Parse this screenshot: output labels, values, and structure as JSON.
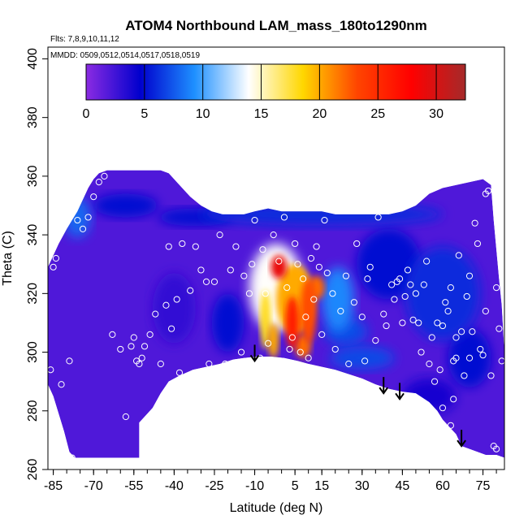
{
  "chart_data": {
    "type": "heatmap",
    "title": "ATOM4 Northbound LAM_mass_180to1290nm",
    "flights_label": "Flts: 7,8,9,10,11,12",
    "dates_label": "MMDD: 0509,0512,0514,0517,0518,0519",
    "xlabel": "Latitude (deg N)",
    "ylabel": "Theta (C)",
    "xlim": [
      -87,
      83
    ],
    "ylim": [
      260,
      404
    ],
    "x_ticks": [
      -85,
      -70,
      -55,
      -40,
      -25,
      -10,
      5,
      15,
      30,
      45,
      60,
      75
    ],
    "x_tick_labels": [
      "-85",
      "-70",
      "-55",
      "-40",
      "-25",
      "-10",
      "5",
      "15",
      "30",
      "45",
      "60",
      "75"
    ],
    "y_ticks": [
      260,
      280,
      300,
      320,
      340,
      360,
      380,
      400
    ],
    "y_tick_labels": [
      "260",
      "280",
      "300",
      "320",
      "340",
      "360",
      "380",
      "400"
    ],
    "colorbar": {
      "ticks": [
        0,
        5,
        10,
        15,
        20,
        25,
        30
      ],
      "tick_labels": [
        "0",
        "5",
        "10",
        "15",
        "20",
        "25",
        "30"
      ],
      "range": [
        0,
        32.5
      ],
      "colors": [
        "#8b2be2",
        "#0000cd",
        "#1e90ff",
        "#ffffff",
        "#ffd700",
        "#ff4500",
        "#ff0000",
        "#a52a2a"
      ]
    },
    "arrows": [
      {
        "lat": -10,
        "theta": 297
      },
      {
        "lat": 38,
        "theta": 286
      },
      {
        "lat": 44,
        "theta": 284
      },
      {
        "lat": 67,
        "theta": 268
      }
    ],
    "surface": [
      [
        -87,
        289
      ],
      [
        -85,
        285
      ],
      [
        -83,
        279
      ],
      [
        -81,
        273
      ],
      [
        -79,
        266
      ],
      [
        -77,
        264
      ],
      [
        -74,
        264
      ],
      [
        -70,
        264
      ],
      [
        -65,
        264
      ],
      [
        -60,
        264
      ],
      [
        -55,
        264
      ],
      [
        -53,
        264
      ],
      [
        -53,
        276
      ],
      [
        -51,
        278
      ],
      [
        -48,
        281
      ],
      [
        -45,
        286
      ],
      [
        -42,
        290
      ],
      [
        -38,
        292
      ],
      [
        -33,
        294
      ],
      [
        -28,
        295
      ],
      [
        -23,
        296
      ],
      [
        -18,
        297.5
      ],
      [
        -14,
        298
      ],
      [
        -9,
        298.5
      ],
      [
        -4,
        298.5
      ],
      [
        1,
        298
      ],
      [
        6,
        297
      ],
      [
        10,
        296
      ],
      [
        15,
        295
      ],
      [
        20,
        294
      ],
      [
        25,
        292.5
      ],
      [
        30,
        291
      ],
      [
        35,
        289
      ],
      [
        40,
        287.5
      ],
      [
        45,
        286.5
      ],
      [
        50,
        286
      ],
      [
        55,
        283
      ],
      [
        58,
        280
      ],
      [
        60,
        277
      ],
      [
        63,
        274
      ],
      [
        65,
        272
      ],
      [
        67,
        268
      ],
      [
        70,
        267
      ],
      [
        73,
        266
      ],
      [
        76,
        265
      ],
      [
        80,
        265
      ],
      [
        83,
        264
      ]
    ],
    "top_boundary": [
      [
        -87,
        329
      ],
      [
        -85,
        333
      ],
      [
        -83,
        337
      ],
      [
        -80,
        342
      ],
      [
        -78,
        345
      ],
      [
        -76,
        348
      ],
      [
        -74,
        352
      ],
      [
        -72,
        356
      ],
      [
        -70,
        359
      ],
      [
        -68,
        361
      ],
      [
        -65,
        362
      ],
      [
        -60,
        362
      ],
      [
        -55,
        362
      ],
      [
        -50,
        362
      ],
      [
        -45,
        362
      ],
      [
        -42,
        361
      ],
      [
        -38,
        357
      ],
      [
        -34,
        353
      ],
      [
        -30,
        350
      ],
      [
        -26,
        348
      ],
      [
        -22,
        347
      ],
      [
        -18,
        347
      ],
      [
        -14,
        347
      ],
      [
        -10,
        348
      ],
      [
        -5,
        349
      ],
      [
        0,
        348
      ],
      [
        5,
        348
      ],
      [
        10,
        348
      ],
      [
        15,
        348
      ],
      [
        20,
        347
      ],
      [
        25,
        347
      ],
      [
        30,
        347
      ],
      [
        35,
        347
      ],
      [
        40,
        347
      ],
      [
        45,
        348
      ],
      [
        50,
        350
      ],
      [
        55,
        354
      ],
      [
        60,
        356
      ],
      [
        65,
        357
      ],
      [
        70,
        358
      ],
      [
        75,
        359
      ],
      [
        78,
        357
      ],
      [
        79,
        345
      ],
      [
        80,
        335
      ],
      [
        81,
        325
      ],
      [
        82,
        316
      ],
      [
        83,
        300
      ]
    ],
    "blobs": [
      {
        "lat": -2,
        "theta": 322,
        "rx": 10,
        "ry": 15,
        "value": 14
      },
      {
        "lat": 5,
        "theta": 318,
        "rx": 7,
        "ry": 12,
        "value": 20
      },
      {
        "lat": -1,
        "theta": 329,
        "rx": 3,
        "ry": 4,
        "value": 29
      },
      {
        "lat": 4,
        "theta": 310,
        "rx": 2.5,
        "ry": 9,
        "value": 26
      },
      {
        "lat": 10,
        "theta": 314,
        "rx": 3,
        "ry": 11,
        "value": 23
      },
      {
        "lat": 13,
        "theta": 322,
        "rx": 3,
        "ry": 4,
        "value": 22
      },
      {
        "lat": -6,
        "theta": 311,
        "rx": 2,
        "ry": 10,
        "value": 18
      },
      {
        "lat": -3,
        "theta": 304,
        "rx": 2,
        "ry": 6,
        "value": 20
      },
      {
        "lat": 8,
        "theta": 302,
        "rx": 3,
        "ry": 4,
        "value": 22
      },
      {
        "lat": 21,
        "theta": 318,
        "rx": 6,
        "ry": 11,
        "value": 9
      },
      {
        "lat": 24,
        "theta": 307,
        "rx": 8,
        "ry": 5,
        "value": 7
      },
      {
        "lat": -76,
        "theta": 346,
        "rx": 5,
        "ry": 7,
        "value": 8
      },
      {
        "lat": -58,
        "theta": 350,
        "rx": 12,
        "ry": 4,
        "value": 5
      },
      {
        "lat": -32,
        "theta": 346,
        "rx": 14,
        "ry": 3,
        "value": 5
      },
      {
        "lat": 15,
        "theta": 347,
        "rx": 45,
        "ry": 4,
        "value": 6
      },
      {
        "lat": 40,
        "theta": 330,
        "rx": 12,
        "ry": 12,
        "value": 5
      },
      {
        "lat": 60,
        "theta": 320,
        "rx": 14,
        "ry": 16,
        "value": 6
      },
      {
        "lat": 30,
        "theta": 298,
        "rx": 12,
        "ry": 4,
        "value": 7
      },
      {
        "lat": 70,
        "theta": 298,
        "rx": 8,
        "ry": 10,
        "value": 5
      },
      {
        "lat": 55,
        "theta": 285,
        "rx": 10,
        "ry": 6,
        "value": 4
      },
      {
        "lat": -20,
        "theta": 310,
        "rx": 6,
        "ry": 10,
        "value": 5
      },
      {
        "lat": -40,
        "theta": 315,
        "rx": 8,
        "ry": 12,
        "value": 3
      }
    ],
    "samples": [
      [
        -86,
        294
      ],
      [
        -86,
        280
      ],
      [
        -85,
        329
      ],
      [
        -84,
        332
      ],
      [
        -82,
        289
      ],
      [
        -81,
        345
      ],
      [
        -79,
        297
      ],
      [
        -78,
        264
      ],
      [
        -76,
        345
      ],
      [
        -74,
        342
      ],
      [
        -72,
        346
      ],
      [
        -70,
        353
      ],
      [
        -68,
        358
      ],
      [
        -66,
        360
      ],
      [
        -63,
        306
      ],
      [
        -60,
        301
      ],
      [
        -58,
        278
      ],
      [
        -56,
        302
      ],
      [
        -55,
        305
      ],
      [
        -54,
        297
      ],
      [
        -53,
        296
      ],
      [
        -52,
        298
      ],
      [
        -51,
        302
      ],
      [
        -49,
        306
      ],
      [
        -47,
        313
      ],
      [
        -45,
        296
      ],
      [
        -43,
        316
      ],
      [
        -42,
        336
      ],
      [
        -41,
        308
      ],
      [
        -40,
        289
      ],
      [
        -39,
        318
      ],
      [
        -38,
        293
      ],
      [
        -37,
        337
      ],
      [
        -35,
        291
      ],
      [
        -34,
        321
      ],
      [
        -32,
        336
      ],
      [
        -30,
        328
      ],
      [
        -28,
        324
      ],
      [
        -27,
        296
      ],
      [
        -25,
        324
      ],
      [
        -23,
        340
      ],
      [
        -21,
        296
      ],
      [
        -19,
        328
      ],
      [
        -17,
        336
      ],
      [
        -15,
        300
      ],
      [
        -14,
        326
      ],
      [
        -12,
        320
      ],
      [
        -11,
        330
      ],
      [
        -10,
        345
      ],
      [
        -8,
        298
      ],
      [
        -7,
        335
      ],
      [
        -6,
        320
      ],
      [
        -5,
        303
      ],
      [
        -3,
        340
      ],
      [
        -2,
        297
      ],
      [
        -1,
        331
      ],
      [
        1,
        346
      ],
      [
        2,
        322
      ],
      [
        3,
        301
      ],
      [
        4,
        305
      ],
      [
        5,
        337
      ],
      [
        6,
        330
      ],
      [
        7,
        300
      ],
      [
        8,
        325
      ],
      [
        9,
        312
      ],
      [
        10,
        298
      ],
      [
        11,
        332
      ],
      [
        12,
        318
      ],
      [
        13,
        336
      ],
      [
        14,
        329
      ],
      [
        15,
        306
      ],
      [
        16,
        345
      ],
      [
        17,
        327
      ],
      [
        19,
        320
      ],
      [
        20,
        301
      ],
      [
        22,
        314
      ],
      [
        24,
        326
      ],
      [
        25,
        296
      ],
      [
        27,
        317
      ],
      [
        28,
        337
      ],
      [
        30,
        312
      ],
      [
        31,
        297
      ],
      [
        32,
        325
      ],
      [
        33,
        329
      ],
      [
        35,
        304
      ],
      [
        36,
        346
      ],
      [
        38,
        313
      ],
      [
        39,
        309
      ],
      [
        41,
        323
      ],
      [
        42,
        318
      ],
      [
        43,
        324
      ],
      [
        44,
        325
      ],
      [
        45,
        310
      ],
      [
        46,
        319
      ],
      [
        47,
        328
      ],
      [
        48,
        323
      ],
      [
        49,
        311
      ],
      [
        50,
        320
      ],
      [
        51,
        310
      ],
      [
        52,
        300
      ],
      [
        53,
        323
      ],
      [
        54,
        331
      ],
      [
        55,
        296
      ],
      [
        56,
        305
      ],
      [
        57,
        290
      ],
      [
        58,
        310
      ],
      [
        59,
        294
      ],
      [
        60,
        281
      ],
      [
        61,
        317
      ],
      [
        62,
        314
      ],
      [
        63,
        322
      ],
      [
        64,
        297
      ],
      [
        65,
        305
      ],
      [
        66,
        333
      ],
      [
        67,
        307
      ],
      [
        68,
        292
      ],
      [
        69,
        319
      ],
      [
        70,
        326
      ],
      [
        71,
        307
      ],
      [
        72,
        344
      ],
      [
        73,
        337
      ],
      [
        74,
        301
      ],
      [
        75,
        299
      ],
      [
        76,
        314
      ],
      [
        77,
        355
      ],
      [
        78,
        292
      ],
      [
        79,
        268
      ],
      [
        80,
        322
      ],
      [
        81,
        308
      ],
      [
        82,
        297
      ],
      [
        80,
        267
      ],
      [
        76,
        354
      ],
      [
        70,
        298
      ],
      [
        65,
        298
      ],
      [
        64,
        284
      ],
      [
        63,
        275
      ],
      [
        62,
        270
      ],
      [
        60,
        309
      ]
    ]
  }
}
